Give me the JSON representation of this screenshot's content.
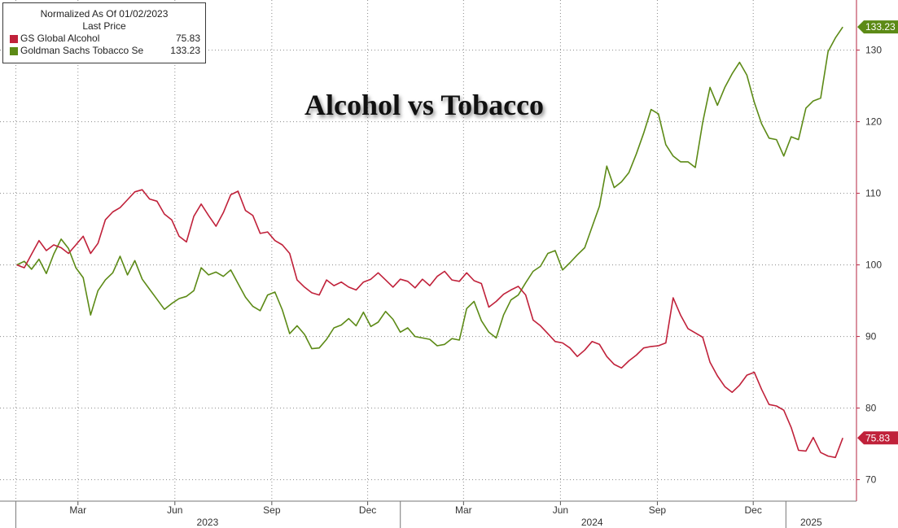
{
  "legend": {
    "header": "Normalized As Of 01/02/2023",
    "subheader": "Last Price",
    "items": [
      {
        "name": "GS Global Alcohol",
        "value": "75.83",
        "color": "#c0213a"
      },
      {
        "name": "Goldman Sachs Tobacco Se",
        "value": "133.23",
        "color": "#5c8a16"
      }
    ]
  },
  "chart_data": {
    "type": "line",
    "title": "Alcohol vs Tobacco",
    "xlabel": "",
    "ylabel": "",
    "ylim": [
      67,
      137
    ],
    "yticks": [
      70,
      80,
      90,
      100,
      110,
      120,
      130
    ],
    "x_range": [
      "2023-01-02",
      "2025-02-28"
    ],
    "x_tick_labels": [
      {
        "label": "Mar",
        "date": "2023-03-01"
      },
      {
        "label": "Jun",
        "date": "2023-06-01"
      },
      {
        "label": "Sep",
        "date": "2023-09-01"
      },
      {
        "label": "Dec",
        "date": "2023-12-01"
      },
      {
        "label": "Mar",
        "date": "2024-03-01"
      },
      {
        "label": "Jun",
        "date": "2024-06-01"
      },
      {
        "label": "Sep",
        "date": "2024-09-01"
      },
      {
        "label": "Dec",
        "date": "2024-12-01"
      }
    ],
    "year_labels": [
      {
        "label": "2023",
        "date": "2023-07-02"
      },
      {
        "label": "2024",
        "date": "2024-07-01"
      },
      {
        "label": "2025",
        "date": "2025-01-25"
      }
    ],
    "year_boundaries": [
      "2023-01-01",
      "2024-01-01",
      "2025-01-01"
    ],
    "grid": true,
    "legend_position": "top-left",
    "series": [
      {
        "name": "GS Global Alcohol",
        "color": "#c0213a",
        "last_label": "75.83",
        "points": [
          [
            "2023-01-02",
            100.0
          ],
          [
            "2023-01-09",
            99.6
          ],
          [
            "2023-01-16",
            101.5
          ],
          [
            "2023-01-23",
            103.4
          ],
          [
            "2023-01-30",
            102.0
          ],
          [
            "2023-02-06",
            102.8
          ],
          [
            "2023-02-13",
            102.4
          ],
          [
            "2023-02-20",
            101.6
          ],
          [
            "2023-02-27",
            102.8
          ],
          [
            "2023-03-06",
            104.0
          ],
          [
            "2023-03-13",
            101.6
          ],
          [
            "2023-03-20",
            103.0
          ],
          [
            "2023-03-27",
            106.3
          ],
          [
            "2023-04-03",
            107.4
          ],
          [
            "2023-04-10",
            108.0
          ],
          [
            "2023-04-17",
            109.1
          ],
          [
            "2023-04-24",
            110.2
          ],
          [
            "2023-05-01",
            110.5
          ],
          [
            "2023-05-08",
            109.2
          ],
          [
            "2023-05-15",
            108.9
          ],
          [
            "2023-05-22",
            107.1
          ],
          [
            "2023-05-29",
            106.3
          ],
          [
            "2023-06-05",
            104.0
          ],
          [
            "2023-06-12",
            103.2
          ],
          [
            "2023-06-19",
            106.8
          ],
          [
            "2023-06-26",
            108.5
          ],
          [
            "2023-07-03",
            106.9
          ],
          [
            "2023-07-10",
            105.4
          ],
          [
            "2023-07-17",
            107.3
          ],
          [
            "2023-07-24",
            109.8
          ],
          [
            "2023-07-31",
            110.3
          ],
          [
            "2023-08-07",
            107.6
          ],
          [
            "2023-08-14",
            106.9
          ],
          [
            "2023-08-21",
            104.4
          ],
          [
            "2023-08-28",
            104.6
          ],
          [
            "2023-09-04",
            103.4
          ],
          [
            "2023-09-11",
            102.8
          ],
          [
            "2023-09-18",
            101.6
          ],
          [
            "2023-09-25",
            97.9
          ],
          [
            "2023-10-02",
            96.9
          ],
          [
            "2023-10-09",
            96.1
          ],
          [
            "2023-10-16",
            95.8
          ],
          [
            "2023-10-23",
            97.9
          ],
          [
            "2023-10-30",
            97.1
          ],
          [
            "2023-11-06",
            97.6
          ],
          [
            "2023-11-13",
            96.9
          ],
          [
            "2023-11-20",
            96.5
          ],
          [
            "2023-11-27",
            97.6
          ],
          [
            "2023-12-04",
            98.0
          ],
          [
            "2023-12-11",
            98.9
          ],
          [
            "2023-12-18",
            97.9
          ],
          [
            "2023-12-25",
            96.9
          ],
          [
            "2024-01-01",
            98.0
          ],
          [
            "2024-01-08",
            97.7
          ],
          [
            "2024-01-15",
            96.8
          ],
          [
            "2024-01-22",
            98.0
          ],
          [
            "2024-01-29",
            97.1
          ],
          [
            "2024-02-05",
            98.4
          ],
          [
            "2024-02-12",
            99.1
          ],
          [
            "2024-02-19",
            97.9
          ],
          [
            "2024-02-26",
            97.7
          ],
          [
            "2024-03-04",
            98.9
          ],
          [
            "2024-03-11",
            97.8
          ],
          [
            "2024-03-18",
            97.4
          ],
          [
            "2024-03-25",
            94.1
          ],
          [
            "2024-04-01",
            94.9
          ],
          [
            "2024-04-08",
            95.9
          ],
          [
            "2024-04-15",
            96.5
          ],
          [
            "2024-04-22",
            97.0
          ],
          [
            "2024-04-29",
            95.8
          ],
          [
            "2024-05-06",
            92.3
          ],
          [
            "2024-05-13",
            91.5
          ],
          [
            "2024-05-20",
            90.4
          ],
          [
            "2024-05-27",
            89.3
          ],
          [
            "2024-06-03",
            89.1
          ],
          [
            "2024-06-10",
            88.4
          ],
          [
            "2024-06-17",
            87.2
          ],
          [
            "2024-06-24",
            88.1
          ],
          [
            "2024-07-01",
            89.3
          ],
          [
            "2024-07-08",
            88.9
          ],
          [
            "2024-07-15",
            87.2
          ],
          [
            "2024-07-22",
            86.1
          ],
          [
            "2024-07-29",
            85.6
          ],
          [
            "2024-08-05",
            86.6
          ],
          [
            "2024-08-12",
            87.4
          ],
          [
            "2024-08-19",
            88.4
          ],
          [
            "2024-08-26",
            88.6
          ],
          [
            "2024-09-02",
            88.7
          ],
          [
            "2024-09-09",
            89.1
          ],
          [
            "2024-09-16",
            95.4
          ],
          [
            "2024-09-23",
            93.0
          ],
          [
            "2024-09-30",
            91.1
          ],
          [
            "2024-10-07",
            90.5
          ],
          [
            "2024-10-14",
            89.9
          ],
          [
            "2024-10-21",
            86.4
          ],
          [
            "2024-10-28",
            84.5
          ],
          [
            "2024-11-04",
            83.0
          ],
          [
            "2024-11-11",
            82.2
          ],
          [
            "2024-11-18",
            83.2
          ],
          [
            "2024-11-25",
            84.6
          ],
          [
            "2024-12-02",
            85.0
          ],
          [
            "2024-12-09",
            82.6
          ],
          [
            "2024-12-16",
            80.5
          ],
          [
            "2024-12-23",
            80.3
          ],
          [
            "2024-12-30",
            79.7
          ],
          [
            "2025-01-06",
            77.3
          ],
          [
            "2025-01-13",
            74.1
          ],
          [
            "2025-01-20",
            74.0
          ],
          [
            "2025-01-27",
            75.9
          ],
          [
            "2025-02-03",
            73.8
          ],
          [
            "2025-02-10",
            73.3
          ],
          [
            "2025-02-17",
            73.1
          ],
          [
            "2025-02-24",
            75.83
          ]
        ]
      },
      {
        "name": "Goldman Sachs Tobacco Se",
        "color": "#5c8a16",
        "last_label": "133.23",
        "points": [
          [
            "2023-01-02",
            100.0
          ],
          [
            "2023-01-09",
            100.5
          ],
          [
            "2023-01-16",
            99.4
          ],
          [
            "2023-01-23",
            100.8
          ],
          [
            "2023-01-30",
            98.8
          ],
          [
            "2023-02-06",
            101.5
          ],
          [
            "2023-02-13",
            103.6
          ],
          [
            "2023-02-20",
            102.3
          ],
          [
            "2023-02-27",
            99.6
          ],
          [
            "2023-03-06",
            98.2
          ],
          [
            "2023-03-13",
            93.0
          ],
          [
            "2023-03-20",
            96.4
          ],
          [
            "2023-03-27",
            97.9
          ],
          [
            "2023-04-03",
            98.9
          ],
          [
            "2023-04-10",
            101.2
          ],
          [
            "2023-04-17",
            98.6
          ],
          [
            "2023-04-24",
            100.6
          ],
          [
            "2023-05-01",
            98.0
          ],
          [
            "2023-05-08",
            96.6
          ],
          [
            "2023-05-15",
            95.2
          ],
          [
            "2023-05-22",
            93.8
          ],
          [
            "2023-05-29",
            94.6
          ],
          [
            "2023-06-05",
            95.3
          ],
          [
            "2023-06-12",
            95.6
          ],
          [
            "2023-06-19",
            96.4
          ],
          [
            "2023-06-26",
            99.6
          ],
          [
            "2023-07-03",
            98.6
          ],
          [
            "2023-07-10",
            99.0
          ],
          [
            "2023-07-17",
            98.4
          ],
          [
            "2023-07-24",
            99.3
          ],
          [
            "2023-07-31",
            97.4
          ],
          [
            "2023-08-07",
            95.5
          ],
          [
            "2023-08-14",
            94.2
          ],
          [
            "2023-08-21",
            93.6
          ],
          [
            "2023-08-28",
            95.8
          ],
          [
            "2023-09-04",
            96.2
          ],
          [
            "2023-09-11",
            93.7
          ],
          [
            "2023-09-18",
            90.4
          ],
          [
            "2023-09-25",
            91.5
          ],
          [
            "2023-10-02",
            90.3
          ],
          [
            "2023-10-09",
            88.3
          ],
          [
            "2023-10-16",
            88.4
          ],
          [
            "2023-10-23",
            89.6
          ],
          [
            "2023-10-30",
            91.2
          ],
          [
            "2023-11-06",
            91.6
          ],
          [
            "2023-11-13",
            92.5
          ],
          [
            "2023-11-20",
            91.5
          ],
          [
            "2023-11-27",
            93.4
          ],
          [
            "2023-12-04",
            91.4
          ],
          [
            "2023-12-11",
            92.0
          ],
          [
            "2023-12-18",
            93.5
          ],
          [
            "2023-12-25",
            92.4
          ],
          [
            "2024-01-01",
            90.6
          ],
          [
            "2024-01-08",
            91.2
          ],
          [
            "2024-01-15",
            90.0
          ],
          [
            "2024-01-22",
            89.8
          ],
          [
            "2024-01-29",
            89.6
          ],
          [
            "2024-02-05",
            88.7
          ],
          [
            "2024-02-12",
            88.9
          ],
          [
            "2024-02-19",
            89.7
          ],
          [
            "2024-02-26",
            89.5
          ],
          [
            "2024-03-04",
            93.9
          ],
          [
            "2024-03-11",
            94.9
          ],
          [
            "2024-03-18",
            92.2
          ],
          [
            "2024-03-25",
            90.6
          ],
          [
            "2024-04-01",
            89.8
          ],
          [
            "2024-04-08",
            93.0
          ],
          [
            "2024-04-15",
            95.1
          ],
          [
            "2024-04-22",
            95.8
          ],
          [
            "2024-04-29",
            97.5
          ],
          [
            "2024-05-06",
            99.1
          ],
          [
            "2024-05-13",
            99.8
          ],
          [
            "2024-05-20",
            101.6
          ],
          [
            "2024-05-27",
            102.0
          ],
          [
            "2024-06-03",
            99.3
          ],
          [
            "2024-06-10",
            100.3
          ],
          [
            "2024-06-17",
            101.4
          ],
          [
            "2024-06-24",
            102.4
          ],
          [
            "2024-07-01",
            105.3
          ],
          [
            "2024-07-08",
            108.2
          ],
          [
            "2024-07-15",
            113.8
          ],
          [
            "2024-07-22",
            110.8
          ],
          [
            "2024-07-29",
            111.6
          ],
          [
            "2024-08-05",
            112.9
          ],
          [
            "2024-08-12",
            115.5
          ],
          [
            "2024-08-19",
            118.4
          ],
          [
            "2024-08-26",
            121.7
          ],
          [
            "2024-09-02",
            121.1
          ],
          [
            "2024-09-09",
            116.8
          ],
          [
            "2024-09-16",
            115.2
          ],
          [
            "2024-09-23",
            114.4
          ],
          [
            "2024-09-30",
            114.4
          ],
          [
            "2024-10-07",
            113.6
          ],
          [
            "2024-10-14",
            119.9
          ],
          [
            "2024-10-21",
            124.8
          ],
          [
            "2024-10-28",
            122.3
          ],
          [
            "2024-11-04",
            124.8
          ],
          [
            "2024-11-11",
            126.7
          ],
          [
            "2024-11-18",
            128.3
          ],
          [
            "2024-11-25",
            126.5
          ],
          [
            "2024-12-02",
            122.7
          ],
          [
            "2024-12-09",
            119.7
          ],
          [
            "2024-12-16",
            117.7
          ],
          [
            "2024-12-23",
            117.5
          ],
          [
            "2024-12-30",
            115.2
          ],
          [
            "2025-01-06",
            117.9
          ],
          [
            "2025-01-13",
            117.5
          ],
          [
            "2025-01-20",
            121.9
          ],
          [
            "2025-01-27",
            122.9
          ],
          [
            "2025-02-03",
            123.3
          ],
          [
            "2025-02-10",
            129.8
          ],
          [
            "2025-02-17",
            131.7
          ],
          [
            "2025-02-24",
            133.23
          ]
        ]
      }
    ]
  }
}
